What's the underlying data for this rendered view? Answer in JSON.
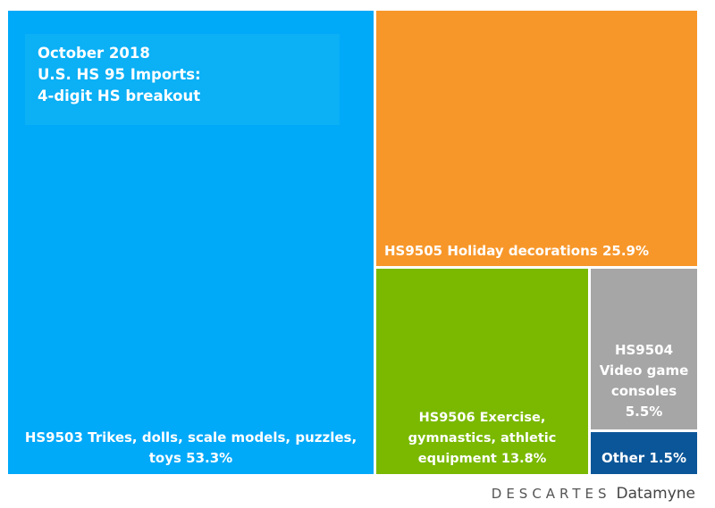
{
  "chart_data": {
    "type": "treemap",
    "title": "October 2018\nU.S. HS 95 Imports:\n4-digit HS breakout",
    "items": [
      {
        "label": "HS9503 Trikes, dolls, scale models, puzzles,\ntoys 53.3%",
        "code": "HS9503",
        "value": 53.3,
        "color": "#01a9f9"
      },
      {
        "label": "HS9505 Holiday decorations 25.9%",
        "code": "HS9505",
        "value": 25.9,
        "color": "#f7972a"
      },
      {
        "label": "HS9506 Exercise,\ngymnastics, athletic\nequipment 13.8%",
        "code": "HS9506",
        "value": 13.8,
        "color": "#7ab900"
      },
      {
        "label": "HS9504\nVideo game\nconsoles\n5.5%",
        "code": "HS9504",
        "value": 5.5,
        "color": "#a6a6a6"
      },
      {
        "label": "Other 1.5%",
        "code": "Other",
        "value": 1.5,
        "color": "#0b5698"
      }
    ]
  },
  "logo": {
    "brand": "DESCARTES",
    "product": "Datamyne"
  }
}
